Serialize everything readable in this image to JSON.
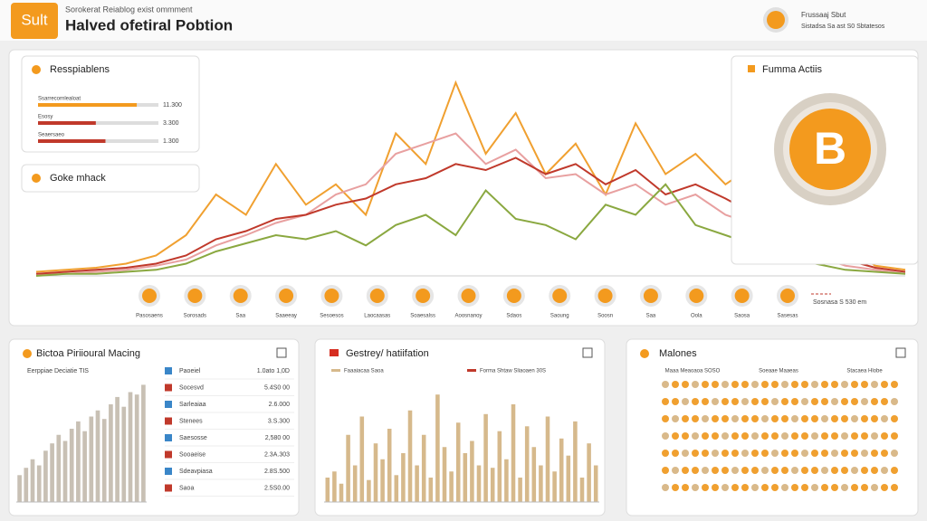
{
  "header": {
    "logo": "Sult",
    "subtitle": "Sorokerat Reiablog exist ommment",
    "title": "Halved ofetiral Pobtion",
    "user_name": "Frussaaj Sbut",
    "user_detail": "Sistadsa Sa ast S0 Sbtatesos"
  },
  "resources": {
    "title": "Resspiablens",
    "items": [
      {
        "label": "Ssarrecornlealoat",
        "value": "11.300",
        "level": 82
      },
      {
        "label": "Esosy",
        "value": "3.300",
        "level": 48
      },
      {
        "label": "Seaersaeo",
        "value": "1.300",
        "level": 56
      }
    ]
  },
  "market": {
    "title": "Goke mhack"
  },
  "coins": [
    "Pasosaens",
    "Sorosads",
    "Saa",
    "Saaeeay",
    "Sesoesos",
    "Laocaasas",
    "Soaesalss",
    "Aoosnanoy",
    "Sdaos",
    "Saoung",
    "Soosn",
    "Saa",
    "Oola",
    "Saosa",
    "Sasesas"
  ],
  "activity": {
    "title": "Fumma Actiis",
    "symbol": "B",
    "note": "Sosnasa S 530 em"
  },
  "chart_data": [
    {
      "type": "line",
      "ylim": [
        0,
        100
      ],
      "series": [
        {
          "color": "#f0a030",
          "values": [
            2,
            3,
            4,
            6,
            10,
            20,
            40,
            30,
            55,
            35,
            45,
            30,
            70,
            55,
            95,
            60,
            80,
            50,
            65,
            40,
            75,
            50,
            60,
            45,
            55,
            35,
            25,
            15,
            5,
            3
          ]
        },
        {
          "color": "#e8a0a0",
          "values": [
            1,
            1,
            2,
            3,
            5,
            8,
            15,
            20,
            26,
            30,
            40,
            45,
            60,
            65,
            70,
            55,
            62,
            48,
            50,
            40,
            45,
            35,
            40,
            30,
            25,
            18,
            10,
            5,
            3,
            1
          ]
        },
        {
          "color": "#c0392b",
          "values": [
            1,
            2,
            3,
            4,
            6,
            10,
            18,
            22,
            28,
            30,
            35,
            38,
            45,
            48,
            55,
            52,
            58,
            50,
            55,
            45,
            52,
            40,
            45,
            38,
            30,
            22,
            15,
            8,
            4,
            2
          ]
        },
        {
          "color": "#8aa840",
          "values": [
            0,
            1,
            1,
            2,
            3,
            6,
            12,
            16,
            20,
            18,
            22,
            15,
            25,
            30,
            20,
            42,
            28,
            25,
            18,
            35,
            30,
            45,
            25,
            20,
            15,
            10,
            6,
            3,
            2,
            1
          ]
        }
      ]
    },
    {
      "type": "bar",
      "title": "Bictoa Piriioural Macing",
      "subtitle": "Eerppiae Deciatie TIS",
      "ylim": [
        0,
        100
      ],
      "color": "#c8c0b4",
      "values": [
        22,
        28,
        35,
        30,
        42,
        48,
        55,
        50,
        60,
        66,
        58,
        70,
        75,
        68,
        80,
        86,
        78,
        90,
        88,
        96
      ]
    },
    {
      "type": "bar",
      "title": "Gestrey/ hatiifation",
      "note": "Forma Shtaw Sliaoaen 30S",
      "ylim": [
        0,
        100
      ],
      "series": [
        {
          "name": "Faaaiacaa Saoa",
          "color": "#d6b98c",
          "values": [
            20,
            25,
            15,
            55,
            30,
            70,
            18,
            48,
            35,
            60,
            22,
            40,
            75,
            30,
            55,
            20,
            88,
            45,
            25,
            65,
            40,
            50,
            30,
            72,
            28,
            58,
            35,
            80,
            20,
            62,
            45,
            30,
            70,
            25,
            52,
            38,
            66,
            20,
            48,
            30
          ]
        }
      ]
    }
  ],
  "ranking": {
    "rows": [
      [
        "Paoeiel",
        "1.0ato 1,0D"
      ],
      [
        "Socesvd",
        "5.4S0 00"
      ],
      [
        "Sarleaiaa",
        "2.6.000"
      ],
      [
        "Stenees",
        "3.S.300"
      ],
      [
        "Saesosse",
        "2,580 00"
      ],
      [
        "Sooaeise",
        "2.3A.303"
      ],
      [
        "Sdeavpiasa",
        "2.8S.500"
      ],
      [
        "Saoa",
        "2.5S0.00"
      ]
    ]
  },
  "milestones": {
    "title": "Malones",
    "columns": [
      "Maaa Meaoaoa SOSO",
      "Soeaae Maaeas",
      "Stacaea Hlobe"
    ]
  }
}
